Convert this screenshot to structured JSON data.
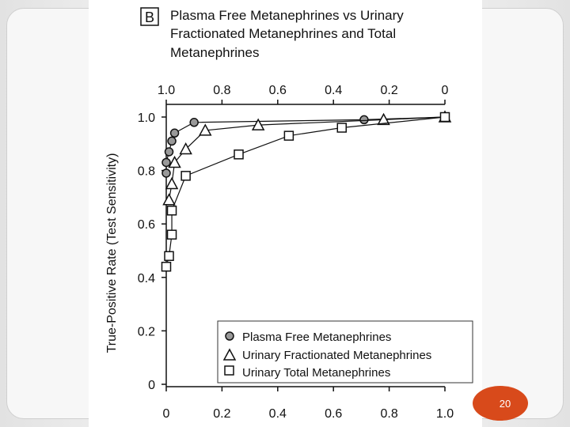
{
  "slide": {
    "page_number": "20",
    "accent_color": "#d84a1b"
  },
  "chart_data": {
    "type": "line",
    "panel_label": "B",
    "title": [
      "Plasma Free Metanephrines vs Urinary",
      "Fractionated Metanephrines and Total",
      "Metanephrines"
    ],
    "ylabel": "True-Positive Rate (Test Sensitivity)",
    "xlabel": "",
    "xlim": [
      0,
      1.0
    ],
    "ylim": [
      0,
      1.0
    ],
    "x_ticks": [
      0,
      0.2,
      0.4,
      0.6,
      0.8,
      1.0
    ],
    "x_tick_labels": [
      "0",
      "0.2",
      "0.4",
      "0.6",
      "0.8",
      "1.0"
    ],
    "top_ticks": [
      1.0,
      0.8,
      0.6,
      0.4,
      0.2,
      0
    ],
    "top_tick_labels": [
      "1.0",
      "0.8",
      "0.6",
      "0.4",
      "0.2",
      "0"
    ],
    "y_ticks": [
      0,
      0.2,
      0.4,
      0.6,
      0.8,
      1.0
    ],
    "y_tick_labels": [
      "0",
      "0.2",
      "0.4",
      "0.6",
      "0.8",
      "1.0"
    ],
    "legend_position": "bottom-right",
    "series": [
      {
        "name": "Plasma Free Metanephrines",
        "marker": "circle",
        "x": [
          0.0,
          0.0,
          0.01,
          0.02,
          0.03,
          0.1,
          0.71,
          1.0
        ],
        "y": [
          0.79,
          0.83,
          0.87,
          0.91,
          0.94,
          0.98,
          0.99,
          1.0
        ]
      },
      {
        "name": "Urinary Fractionated Metanephrines",
        "marker": "triangle",
        "x": [
          0.01,
          0.02,
          0.03,
          0.07,
          0.14,
          0.33,
          0.78,
          1.0
        ],
        "y": [
          0.69,
          0.75,
          0.83,
          0.88,
          0.95,
          0.97,
          0.99,
          1.0
        ]
      },
      {
        "name": "Urinary Total Metanephrines",
        "marker": "square",
        "x": [
          0.0,
          0.01,
          0.02,
          0.02,
          0.07,
          0.26,
          0.44,
          0.63,
          1.0
        ],
        "y": [
          0.44,
          0.48,
          0.56,
          0.65,
          0.78,
          0.86,
          0.93,
          0.96,
          1.0
        ]
      }
    ]
  }
}
